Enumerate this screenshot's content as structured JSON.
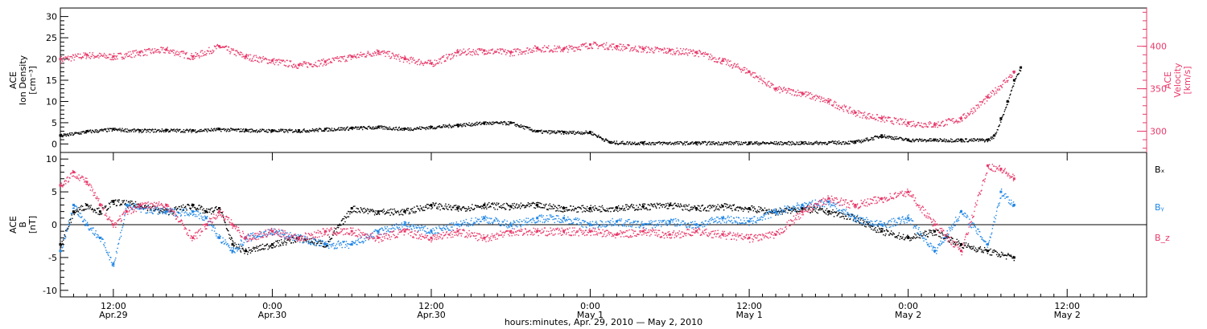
{
  "colors": {
    "density": "#000000",
    "velocity": "#e8396a",
    "bx": "#000000",
    "by": "#1f86e6",
    "bz": "#e8396a"
  },
  "chart_data": [
    {
      "type": "scatter",
      "panel": "top",
      "left_axis": {
        "label_lines": [
          "ACE",
          "Ion Density",
          "[cm⁻³]"
        ],
        "ticks": [
          0,
          5,
          10,
          15,
          20,
          25,
          30
        ],
        "ylim": [
          -2,
          32
        ]
      },
      "right_axis": {
        "label_lines": [
          "ACE",
          "Velocity",
          "[km/s]"
        ],
        "ticks": [
          300,
          350,
          400
        ],
        "ylim": [
          275,
          445
        ]
      },
      "xlim_hours": [
        0,
        82
      ],
      "series": [
        {
          "key": "density",
          "axis": "left",
          "x_hours": [
            0,
            2,
            4,
            6,
            8,
            10,
            12,
            14,
            16,
            18,
            20,
            22,
            24,
            26,
            28,
            30,
            32,
            34,
            36,
            38,
            40,
            41.5,
            44,
            48,
            52,
            56,
            60,
            62,
            64,
            66,
            68,
            70,
            70.5,
            71,
            71.5,
            72,
            72.5
          ],
          "values": [
            2,
            3,
            3.5,
            3.2,
            3.3,
            3.2,
            3.5,
            3.3,
            3.2,
            3.2,
            3.5,
            3.8,
            4,
            3.6,
            4,
            4.5,
            5,
            5,
            3,
            2.8,
            2.8,
            0.4,
            0.3,
            0.3,
            0.3,
            0.3,
            0.5,
            2,
            1,
            1,
            1,
            1,
            2,
            6,
            10,
            15,
            18
          ]
        },
        {
          "key": "velocity",
          "axis": "right",
          "x_hours": [
            0,
            2,
            4,
            6,
            8,
            10,
            12,
            14,
            16,
            18,
            20,
            22,
            24,
            26,
            28,
            30,
            32,
            34,
            36,
            38,
            40,
            42,
            44,
            46,
            48,
            50,
            52,
            54,
            56,
            58,
            60,
            62,
            64,
            66,
            68,
            70,
            72
          ],
          "values": [
            385,
            390,
            388,
            393,
            396,
            388,
            400,
            388,
            383,
            378,
            382,
            388,
            394,
            385,
            380,
            393,
            395,
            393,
            398,
            397,
            402,
            400,
            397,
            395,
            393,
            383,
            370,
            350,
            345,
            335,
            322,
            315,
            310,
            308,
            315,
            340,
            370
          ]
        }
      ]
    },
    {
      "type": "scatter",
      "panel": "bottom",
      "left_axis": {
        "label_lines": [
          "ACE",
          "B",
          "[nT]"
        ],
        "ticks": [
          -10,
          -5,
          0,
          5,
          10
        ],
        "ylim": [
          -11,
          11
        ]
      },
      "xlim_hours": [
        0,
        82
      ],
      "legend": [
        "Bₓ",
        "Bᵧ",
        "B_z"
      ],
      "series": [
        {
          "key": "bx",
          "x_hours": [
            0,
            1,
            2,
            3,
            4,
            6,
            8,
            10,
            11,
            12,
            13,
            14,
            16,
            18,
            20,
            22,
            24,
            26,
            28,
            30,
            32,
            34,
            36,
            38,
            40,
            42,
            44,
            46,
            48,
            50,
            52,
            54,
            56,
            58,
            60,
            62,
            64,
            66,
            68,
            70,
            72
          ],
          "values": [
            -3,
            2,
            3,
            2,
            3.5,
            3,
            2,
            3,
            2,
            2.5,
            -3,
            -4,
            -3,
            -2,
            -3,
            2.5,
            2,
            2,
            3,
            2.5,
            3,
            2.8,
            3,
            2.5,
            2.5,
            2.6,
            2.8,
            3,
            2.5,
            2.8,
            2.5,
            2,
            2.5,
            2,
            1,
            -1,
            -2,
            -1,
            -3,
            -4,
            -5
          ]
        },
        {
          "key": "by",
          "x_hours": [
            0,
            1,
            2,
            3,
            4,
            5,
            6,
            8,
            10,
            11,
            12,
            13,
            14,
            16,
            18,
            20,
            22,
            24,
            26,
            28,
            30,
            32,
            34,
            36,
            38,
            40,
            42,
            44,
            46,
            48,
            50,
            52,
            54,
            56,
            58,
            60,
            62,
            64,
            66,
            68,
            70,
            71,
            72
          ],
          "values": [
            -4,
            3,
            0,
            -2,
            -6,
            3,
            2.5,
            2,
            2,
            1,
            -2,
            -4,
            -2,
            -1,
            -2,
            -3,
            -3,
            -1,
            0,
            -1,
            0,
            1,
            0,
            1,
            1,
            0,
            0.5,
            0,
            0.5,
            0,
            1,
            0.5,
            2,
            3,
            3.5,
            1,
            0,
            1,
            -4,
            2,
            -3,
            5,
            3
          ]
        },
        {
          "key": "bz",
          "x_hours": [
            0,
            1,
            2,
            3,
            4,
            5,
            6,
            8,
            10,
            11,
            12,
            13,
            14,
            16,
            18,
            20,
            22,
            24,
            26,
            28,
            30,
            32,
            34,
            36,
            38,
            40,
            42,
            44,
            46,
            48,
            50,
            52,
            54,
            56,
            58,
            60,
            62,
            64,
            66,
            68,
            70,
            71,
            72
          ],
          "values": [
            6,
            8,
            6.5,
            3,
            0,
            2,
            3,
            3,
            -2,
            0,
            2,
            0,
            -2,
            -1,
            -2,
            -1,
            -1,
            -2,
            -1,
            -2,
            -1,
            -2,
            -1,
            -1,
            -1,
            -1,
            -1.5,
            -1,
            -1.5,
            -1,
            -1.5,
            -2,
            -1.5,
            2,
            4,
            3,
            4,
            5,
            0,
            -4,
            9,
            8.5,
            7
          ]
        }
      ]
    }
  ],
  "x_axis": {
    "ticks": [
      {
        "hour": 4,
        "time": "12:00",
        "date": "Apr.29"
      },
      {
        "hour": 16,
        "time": "0:00",
        "date": "Apr.30"
      },
      {
        "hour": 28,
        "time": "12:00",
        "date": "Apr.30"
      },
      {
        "hour": 40,
        "time": "0:00",
        "date": "May 1"
      },
      {
        "hour": 52,
        "time": "12:00",
        "date": "May 1"
      },
      {
        "hour": 64,
        "time": "0:00",
        "date": "May 2"
      },
      {
        "hour": 76,
        "time": "12:00",
        "date": "May 2"
      }
    ],
    "title": "hours:minutes, Apr. 29, 2010 — May  2, 2010"
  }
}
